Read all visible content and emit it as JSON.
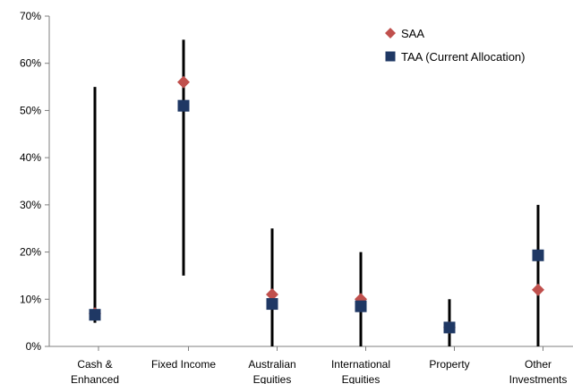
{
  "chart_data": {
    "type": "scatter",
    "categories": [
      [
        "Cash &",
        "Enhanced"
      ],
      [
        "Fixed Income"
      ],
      [
        "Australian",
        "Equities"
      ],
      [
        "International",
        "Equities"
      ],
      [
        "Property"
      ],
      [
        "Other",
        "Investments"
      ]
    ],
    "ranges": [
      {
        "low": 5,
        "high": 55
      },
      {
        "low": 15,
        "high": 65
      },
      {
        "low": 0,
        "high": 25
      },
      {
        "low": 0,
        "high": 20
      },
      {
        "low": 0,
        "high": 10
      },
      {
        "low": 0,
        "high": 30
      }
    ],
    "series": [
      {
        "name": "SAA",
        "marker": "diamond",
        "color": "#c0504d",
        "values": [
          7,
          56,
          11,
          10,
          4,
          12
        ]
      },
      {
        "name": "TAA (Current Allocation)",
        "marker": "square",
        "color": "#1f3864",
        "values": [
          6.7,
          51,
          9,
          8.5,
          4,
          19.3
        ]
      }
    ],
    "ylim": [
      0,
      70
    ],
    "yticks": [
      "0%",
      "10%",
      "20%",
      "30%",
      "40%",
      "50%",
      "60%",
      "70%"
    ],
    "grid": false,
    "legend": "top-right",
    "range_color": "#000000"
  }
}
